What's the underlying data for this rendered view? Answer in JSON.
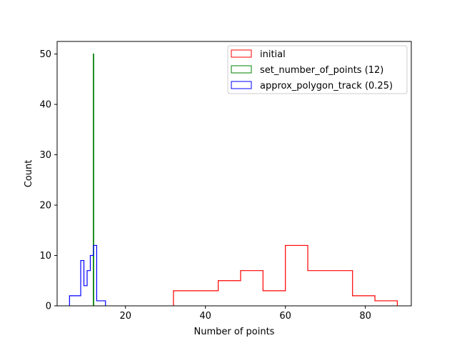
{
  "chart_data": {
    "type": "histogram",
    "xlabel": "Number of points",
    "ylabel": "Count",
    "xlim": [
      2.9,
      91.5
    ],
    "ylim": [
      0,
      52.5
    ],
    "xticks": [
      20,
      40,
      60,
      80
    ],
    "yticks": [
      0,
      10,
      20,
      30,
      40,
      50
    ],
    "grid": false,
    "legend_position": "top-right",
    "series": [
      {
        "name": "initial",
        "color": "#ff0000",
        "histtype": "step",
        "bin_edges": [
          32.0,
          37.6,
          43.2,
          48.8,
          54.4,
          60.0,
          65.6,
          71.2,
          76.8,
          82.4,
          88.0
        ],
        "counts": [
          3,
          3,
          5,
          7,
          3,
          12,
          7,
          7,
          2,
          1
        ]
      },
      {
        "name": "set_number_of_points (12)",
        "color": "#008000",
        "histtype": "step",
        "bin_edges": [
          11.95,
          12.05
        ],
        "counts": [
          50
        ]
      },
      {
        "name": "approx_polygon_track (0.25)",
        "color": "#0000ff",
        "histtype": "step",
        "bin_edges": [
          6.0,
          8.8,
          9.6,
          10.4,
          11.2,
          12.0,
          12.8,
          15.0
        ],
        "counts": [
          2,
          9,
          4,
          7,
          10,
          12,
          1
        ]
      }
    ]
  }
}
